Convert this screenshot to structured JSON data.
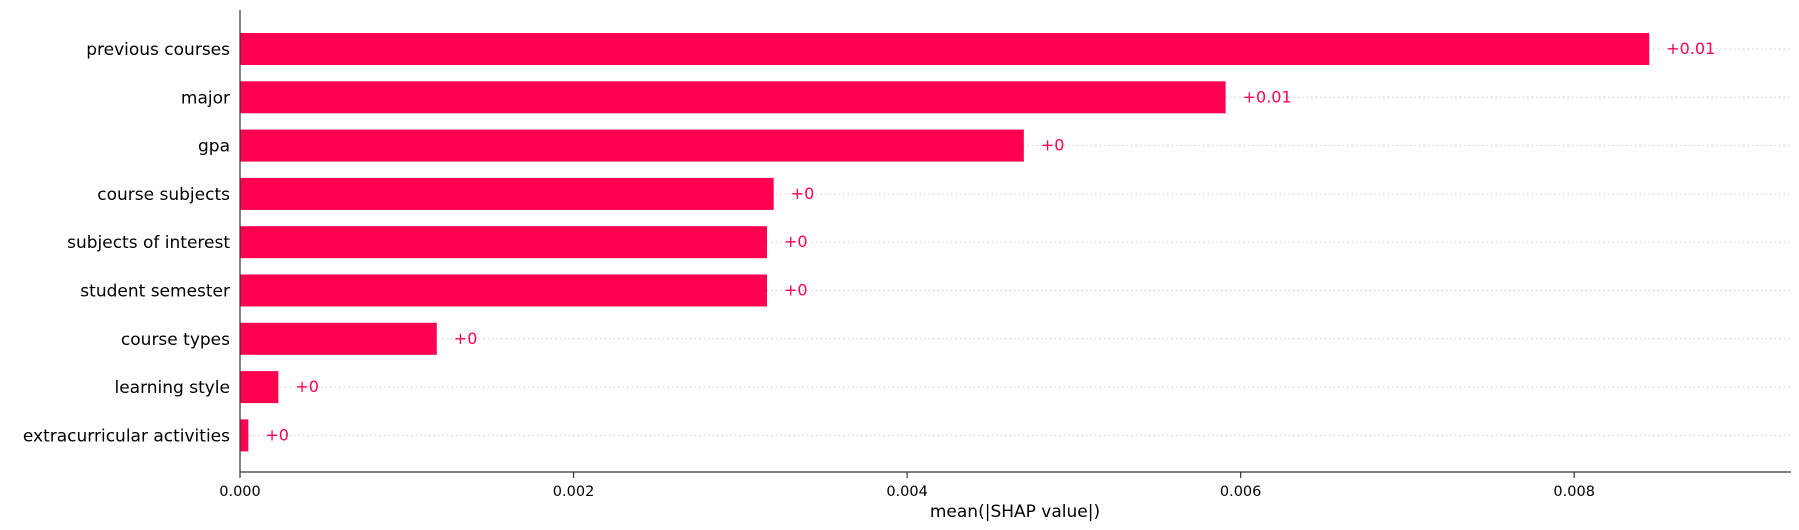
{
  "chart_data": {
    "type": "bar",
    "orientation": "horizontal",
    "categories": [
      "previous courses",
      "major",
      "gpa",
      "course subjects",
      "subjects of interest",
      "student semester",
      "course types",
      "learning style",
      "extracurricular activities"
    ],
    "values": [
      0.00845,
      0.00591,
      0.0047,
      0.0032,
      0.00316,
      0.00316,
      0.00118,
      0.00023,
      5e-05
    ],
    "data_labels": [
      "+0.01",
      "+0.01",
      "+0",
      "+0",
      "+0",
      "+0",
      "+0",
      "+0",
      "+0"
    ],
    "xlabel": "mean(|SHAP value|)",
    "ylabel": "",
    "title": "",
    "xlim": [
      0,
      0.0093
    ],
    "xticks": [
      0.0,
      0.002,
      0.004,
      0.006,
      0.008
    ],
    "xtick_labels": [
      "0.000",
      "0.002",
      "0.004",
      "0.006",
      "0.008"
    ],
    "grid": "dotted horizontal guide lines per row",
    "legend": "none",
    "colors": {
      "bar": "#ff0051",
      "data_label": "#ff0051",
      "guide": "#cccccc",
      "axis": "#333333"
    }
  }
}
